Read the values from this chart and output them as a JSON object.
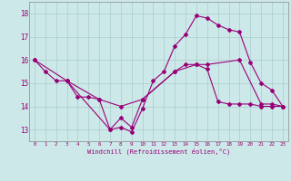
{
  "background_color": "#cce8e8",
  "grid_color": "#aacece",
  "line_color": "#990077",
  "xlabel": "Windchill (Refroidissement éolien,°C)",
  "xlim": [
    -0.5,
    23.5
  ],
  "ylim": [
    12.5,
    18.5
  ],
  "yticks": [
    13,
    14,
    15,
    16,
    17,
    18
  ],
  "xticks": [
    0,
    1,
    2,
    3,
    4,
    5,
    6,
    7,
    8,
    9,
    10,
    11,
    12,
    13,
    14,
    15,
    16,
    17,
    18,
    19,
    20,
    21,
    22,
    23
  ],
  "line1_x": [
    0,
    1,
    2,
    3,
    7,
    8,
    9,
    10,
    11,
    12,
    13,
    14,
    15,
    16,
    17,
    18,
    19,
    20,
    21,
    22,
    23
  ],
  "line1_y": [
    16.0,
    15.5,
    15.1,
    15.1,
    13.0,
    13.1,
    12.9,
    13.9,
    15.1,
    15.5,
    16.6,
    17.1,
    17.9,
    17.8,
    17.5,
    17.3,
    17.2,
    15.9,
    15.0,
    14.7,
    14.0
  ],
  "line2_x": [
    0,
    3,
    6,
    8,
    10,
    13,
    15,
    16,
    19,
    21,
    22,
    23
  ],
  "line2_y": [
    16.0,
    15.1,
    14.3,
    14.0,
    14.3,
    15.5,
    15.8,
    15.8,
    16.0,
    14.1,
    14.1,
    14.0
  ],
  "line3_x": [
    3,
    4,
    5,
    6,
    7,
    8,
    9,
    10,
    13,
    14,
    15,
    16,
    17,
    18,
    19,
    20,
    21,
    22,
    23
  ],
  "line3_y": [
    15.1,
    14.4,
    14.4,
    14.3,
    13.0,
    13.5,
    13.1,
    14.3,
    15.5,
    15.8,
    15.8,
    15.6,
    14.2,
    14.1,
    14.1,
    14.1,
    14.0,
    14.0,
    14.0
  ]
}
